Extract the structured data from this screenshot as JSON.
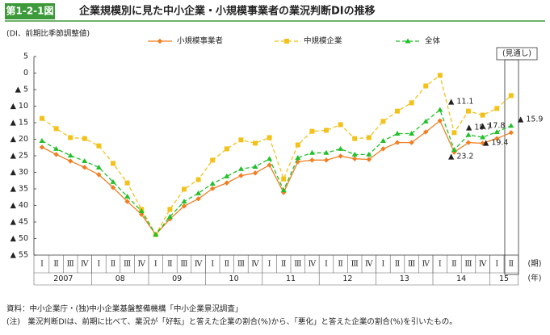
{
  "chart_data": {
    "type": "line",
    "figure_label": "第1-2-1図",
    "title": "企業規模別に見た中小企業・小規模事業者の業況判断DIの推移",
    "y_axis_label": "(DI、前期比季節調整値)",
    "quarter_unit": "(期)",
    "year_unit": "(年)",
    "forecast_label": "(見通し)",
    "categories": [
      "Ⅰ",
      "Ⅱ",
      "Ⅲ",
      "Ⅳ",
      "Ⅰ",
      "Ⅱ",
      "Ⅲ",
      "Ⅳ",
      "Ⅰ",
      "Ⅱ",
      "Ⅲ",
      "Ⅳ",
      "Ⅰ",
      "Ⅱ",
      "Ⅲ",
      "Ⅳ",
      "Ⅰ",
      "Ⅱ",
      "Ⅲ",
      "Ⅳ",
      "Ⅰ",
      "Ⅱ",
      "Ⅲ",
      "Ⅳ",
      "Ⅰ",
      "Ⅱ",
      "Ⅲ",
      "Ⅳ",
      "Ⅰ",
      "Ⅱ",
      "Ⅲ",
      "Ⅳ",
      "Ⅰ",
      "Ⅱ"
    ],
    "year_labels": [
      "2007",
      "08",
      "09",
      "10",
      "11",
      "12",
      "13",
      "14",
      "15"
    ],
    "series": [
      {
        "name": "小規模事業者",
        "color": "#f07f22",
        "line_style": "solid",
        "marker": "diamond",
        "values": [
          -22.4,
          -24.6,
          -26.6,
          -28.5,
          -30.7,
          -34.6,
          -38.8,
          -42.7,
          -48.8,
          -44.1,
          -40.2,
          -38,
          -34.9,
          -33.2,
          -31,
          -30.2,
          -27.8,
          -36.1,
          -26.8,
          -26.3,
          -26.3,
          -25.1,
          -25.9,
          -26.1,
          -22.9,
          -21,
          -21,
          -17.8,
          -14.4,
          -23.9,
          -21,
          -21.2,
          -19.8,
          -18
        ]
      },
      {
        "name": "中規模企業",
        "color": "#f2c21b",
        "line_style": "dashed",
        "marker": "square",
        "values": [
          -13.7,
          -16.8,
          -19.5,
          -19.8,
          -22,
          -27.3,
          -33.2,
          -41.2,
          -48.8,
          -41.2,
          -35.1,
          -32.2,
          -26.3,
          -22.9,
          -20.2,
          -21.2,
          -19.5,
          -32,
          -21.7,
          -17.6,
          -17.3,
          -15.6,
          -19.8,
          -19.5,
          -14.6,
          -11.5,
          -9,
          -3.9,
          -0.7,
          -18,
          -11.5,
          -12.7,
          -10.7,
          -6.8
        ]
      },
      {
        "name": "全体",
        "color": "#22c02a",
        "line_style": "dashed",
        "marker": "triangle",
        "values": [
          -20.5,
          -22.9,
          -24.9,
          -26.6,
          -28.5,
          -32.9,
          -37.3,
          -41.7,
          -48.8,
          -43.4,
          -38.8,
          -36.3,
          -33.4,
          -31.2,
          -29,
          -28.3,
          -25.9,
          -35.4,
          -25.6,
          -24.1,
          -24.1,
          -22.9,
          -24.6,
          -24.6,
          -20.5,
          -18.3,
          -18.3,
          -14.6,
          -11.1,
          -23.2,
          -18.7,
          -19.4,
          -17.8,
          -15.9
        ]
      }
    ],
    "annotations": [
      "▲ 11.1",
      "▲ 23.2",
      "▲ 18.7",
      "▲ 19.4",
      "▲ 17.8",
      "▲ 15.9"
    ],
    "ylim": [
      -55,
      5
    ],
    "yticks": [
      5,
      0,
      {
        "value": -5,
        "label": "▲ 5"
      },
      {
        "value": -10,
        "label": "▲ 10"
      },
      {
        "value": -15,
        "label": "▲ 15"
      },
      {
        "value": -20,
        "label": "▲ 20"
      },
      {
        "value": -25,
        "label": "▲ 25"
      },
      {
        "value": -30,
        "label": "▲ 30"
      },
      {
        "value": -35,
        "label": "▲ 35"
      },
      {
        "value": -40,
        "label": "▲ 40"
      },
      {
        "value": -45,
        "label": "▲ 45"
      },
      {
        "value": -50,
        "label": "▲ 50"
      },
      {
        "value": -55,
        "label": "▲ 55"
      }
    ],
    "grid": false,
    "legend_position": "top",
    "source": "資料：中小企業庁・(独)中小企業基盤整備機構「中小企業景況調査」",
    "note": "(注)　業況判断DIは、前期に比べて、業況が「好転」と答えた企業の割合(%)から、「悪化」と答えた企業の割合(%)を引いたもの。"
  }
}
